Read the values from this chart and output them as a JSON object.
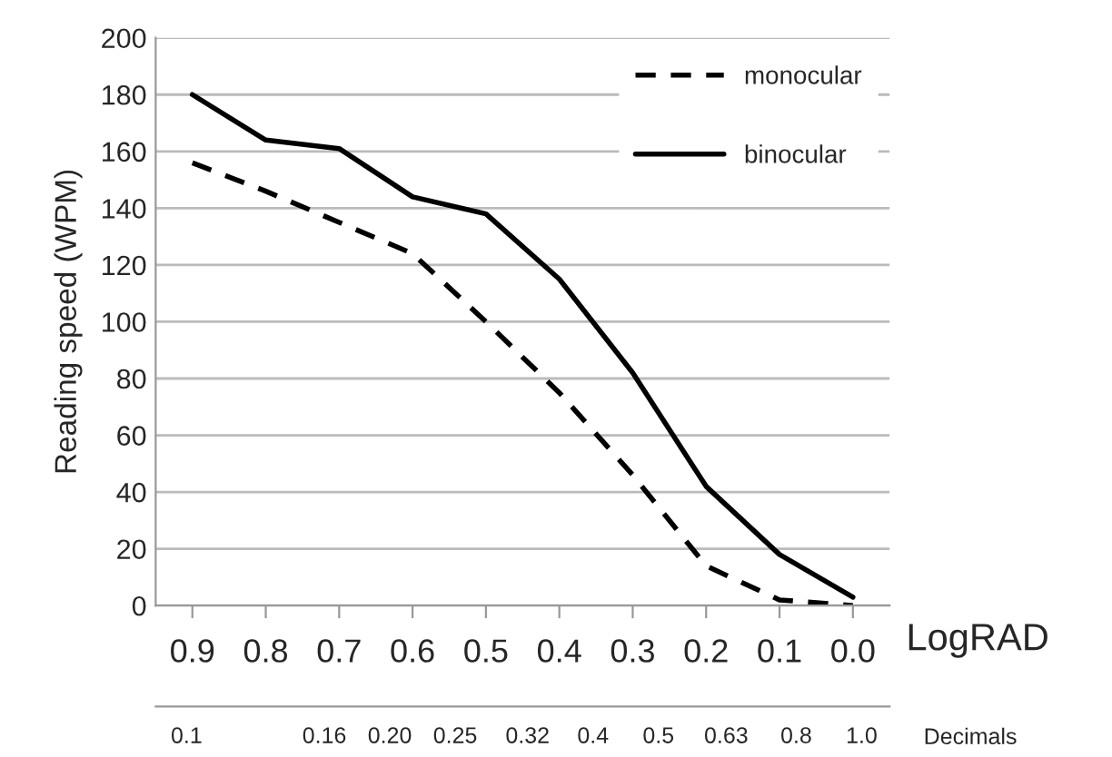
{
  "chart_data": {
    "type": "line",
    "ylabel": "Reading speed (WPM)",
    "xlabel": "LogRAD",
    "x2label": "Decimals",
    "x": [
      0.9,
      0.8,
      0.7,
      0.6,
      0.5,
      0.4,
      0.3,
      0.2,
      0.1,
      0.0
    ],
    "xlim": [
      0.95,
      -0.05
    ],
    "xticks": [
      0.9,
      0.8,
      0.7,
      0.6,
      0.5,
      0.4,
      0.3,
      0.2,
      0.1,
      {
        "value": 0.0,
        "label": "0.0"
      }
    ],
    "log": "x2",
    "x2lim": [
      0.09,
      1.1
    ],
    "x2ticks": [
      0.1,
      0.16,
      {
        "value": 0.2,
        "label": "0.20"
      },
      0.25,
      0.32,
      0.4,
      0.5,
      0.63,
      0.8,
      {
        "value": 1.0,
        "label": "1.0"
      }
    ],
    "ylim": [
      0,
      200
    ],
    "yticks": [
      0,
      20,
      40,
      60,
      80,
      100,
      120,
      140,
      160,
      180,
      200
    ],
    "grid": "y",
    "legend": "top right",
    "marker": "none",
    "series": [
      {
        "name": "monocular",
        "color": "#000000",
        "line_style": "dashed",
        "values": [
          156,
          146,
          135,
          124,
          100,
          75,
          46,
          14,
          2,
          0
        ]
      },
      {
        "name": "binocular",
        "color": "#000000",
        "line_style": "solid",
        "values": [
          180,
          164,
          161,
          144,
          138,
          115,
          82,
          42,
          18,
          3
        ]
      }
    ]
  }
}
